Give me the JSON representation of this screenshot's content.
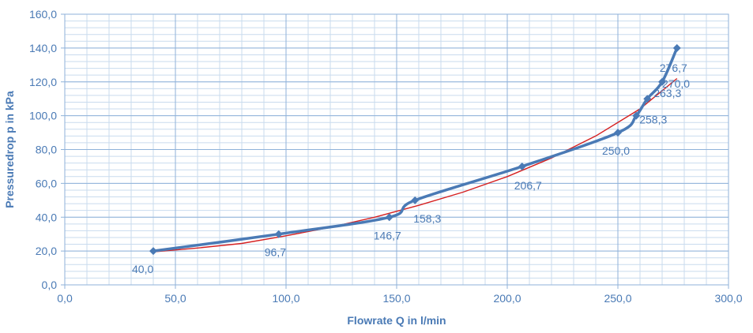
{
  "chart_data": {
    "type": "scatter",
    "title": "",
    "xlabel": "Flowrate Q in l/min",
    "ylabel": "Pressuredrop p in kPa",
    "xlim": [
      0,
      300
    ],
    "ylim": [
      0,
      160
    ],
    "x_major_step": 50,
    "y_major_step": 20,
    "x_minor_step": 10,
    "y_minor_step": 4,
    "grid": true,
    "legend": "none",
    "colors": {
      "measured": "#4a7ab5",
      "fit": "#d62020",
      "grid_major": "#8fb2d9",
      "grid_minor": "#c9dbee",
      "text": "#4a7ab5"
    },
    "x_tick_labels": [
      "0,0",
      "50,0",
      "100,0",
      "150,0",
      "200,0",
      "250,0",
      "300,0"
    ],
    "y_tick_labels": [
      "0,0",
      "20,0",
      "40,0",
      "60,0",
      "80,0",
      "100,0",
      "120,0",
      "140,0",
      "160,0"
    ],
    "series": [
      {
        "x": [
          40.0,
          96.7,
          146.7,
          158.3,
          206.7,
          250.0,
          258.3,
          263.3,
          270.0,
          276.7
        ],
        "y": [
          20,
          30,
          40,
          50,
          70,
          90,
          100,
          110,
          120,
          140
        ],
        "labels": [
          "40,0",
          "96,7",
          "146,7",
          "158,3",
          "206,7",
          "250,0",
          "258,3",
          "263,3",
          "270,0",
          "276,7"
        ]
      }
    ],
    "trendline": {
      "type": "exponential",
      "x": [
        40,
        60,
        80,
        100,
        120,
        140,
        160,
        180,
        200,
        220,
        240,
        260,
        276.7
      ],
      "y": [
        19.5,
        21.8,
        24.5,
        29.0,
        34.0,
        40.0,
        47.0,
        54.8,
        64.0,
        75.0,
        88.0,
        104.0,
        122.0
      ]
    }
  }
}
